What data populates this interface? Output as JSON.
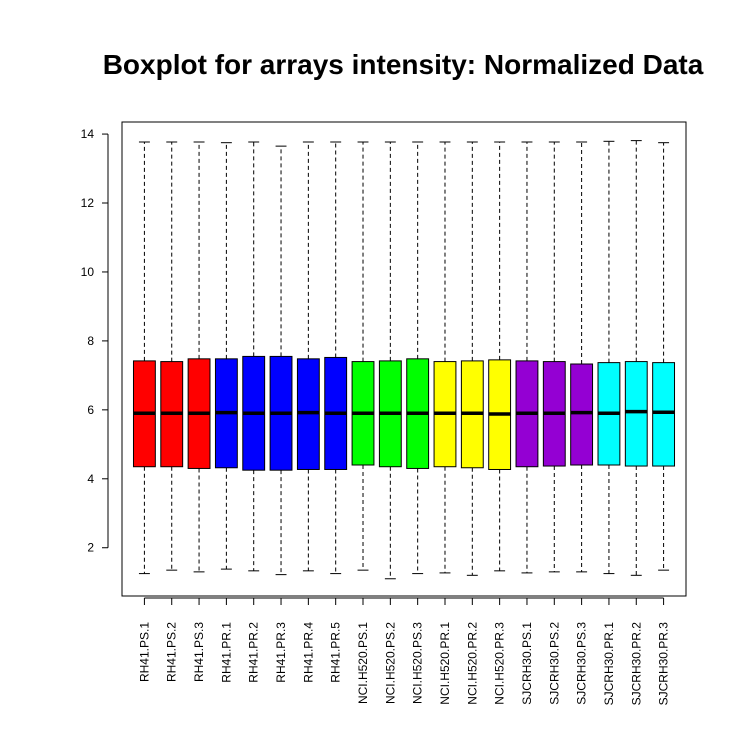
{
  "chart_data": {
    "type": "boxplot",
    "title": "Boxplot for arrays intensity: Normalized Data",
    "xlabel": "",
    "ylabel": "",
    "ylim": [
      0.6,
      14.35
    ],
    "yticks": [
      2,
      4,
      6,
      8,
      10,
      12,
      14
    ],
    "grid": false,
    "legend": "none",
    "boxes": [
      {
        "label": "RH41.PS.1",
        "color": "#ff0000",
        "min": 1.25,
        "q1": 4.35,
        "median": 5.9,
        "q3": 7.42,
        "max": 13.77
      },
      {
        "label": "RH41.PS.2",
        "color": "#ff0000",
        "min": 1.35,
        "q1": 4.35,
        "median": 5.9,
        "q3": 7.4,
        "max": 13.77
      },
      {
        "label": "RH41.PS.3",
        "color": "#ff0000",
        "min": 1.3,
        "q1": 4.3,
        "median": 5.9,
        "q3": 7.48,
        "max": 13.77
      },
      {
        "label": "RH41.PR.1",
        "color": "#0000ff",
        "min": 1.38,
        "q1": 4.32,
        "median": 5.92,
        "q3": 7.48,
        "max": 13.75
      },
      {
        "label": "RH41.PR.2",
        "color": "#0000ff",
        "min": 1.33,
        "q1": 4.25,
        "median": 5.9,
        "q3": 7.55,
        "max": 13.77
      },
      {
        "label": "RH41.PR.3",
        "color": "#0000ff",
        "min": 1.22,
        "q1": 4.25,
        "median": 5.9,
        "q3": 7.55,
        "max": 13.65
      },
      {
        "label": "RH41.PR.4",
        "color": "#0000ff",
        "min": 1.33,
        "q1": 4.27,
        "median": 5.92,
        "q3": 7.48,
        "max": 13.77
      },
      {
        "label": "RH41.PR.5",
        "color": "#0000ff",
        "min": 1.25,
        "q1": 4.27,
        "median": 5.9,
        "q3": 7.52,
        "max": 13.77
      },
      {
        "label": "NCI.H520.PS.1",
        "color": "#00ff00",
        "min": 1.35,
        "q1": 4.4,
        "median": 5.9,
        "q3": 7.4,
        "max": 13.77
      },
      {
        "label": "NCI.H520.PS.2",
        "color": "#00ff00",
        "min": 1.1,
        "q1": 4.35,
        "median": 5.9,
        "q3": 7.42,
        "max": 13.77
      },
      {
        "label": "NCI.H520.PS.3",
        "color": "#00ff00",
        "min": 1.25,
        "q1": 4.3,
        "median": 5.9,
        "q3": 7.48,
        "max": 13.77
      },
      {
        "label": "NCI.H520.PR.1",
        "color": "#ffff00",
        "min": 1.27,
        "q1": 4.35,
        "median": 5.9,
        "q3": 7.4,
        "max": 13.77
      },
      {
        "label": "NCI.H520.PR.2",
        "color": "#ffff00",
        "min": 1.2,
        "q1": 4.32,
        "median": 5.9,
        "q3": 7.42,
        "max": 13.77
      },
      {
        "label": "NCI.H520.PR.3",
        "color": "#ffff00",
        "min": 1.33,
        "q1": 4.27,
        "median": 5.88,
        "q3": 7.45,
        "max": 13.77
      },
      {
        "label": "SJCRH30.PS.1",
        "color": "#9400d3",
        "min": 1.27,
        "q1": 4.35,
        "median": 5.9,
        "q3": 7.42,
        "max": 13.77
      },
      {
        "label": "SJCRH30.PS.2",
        "color": "#9400d3",
        "min": 1.3,
        "q1": 4.37,
        "median": 5.9,
        "q3": 7.4,
        "max": 13.77
      },
      {
        "label": "SJCRH30.PS.3",
        "color": "#9400d3",
        "min": 1.3,
        "q1": 4.4,
        "median": 5.92,
        "q3": 7.33,
        "max": 13.77
      },
      {
        "label": "SJCRH30.PR.1",
        "color": "#00ffff",
        "min": 1.25,
        "q1": 4.4,
        "median": 5.9,
        "q3": 7.37,
        "max": 13.79
      },
      {
        "label": "SJCRH30.PR.2",
        "color": "#00ffff",
        "min": 1.2,
        "q1": 4.37,
        "median": 5.95,
        "q3": 7.4,
        "max": 13.81
      },
      {
        "label": "SJCRH30.PR.3",
        "color": "#00ffff",
        "min": 1.35,
        "q1": 4.37,
        "median": 5.93,
        "q3": 7.37,
        "max": 13.75
      }
    ]
  }
}
